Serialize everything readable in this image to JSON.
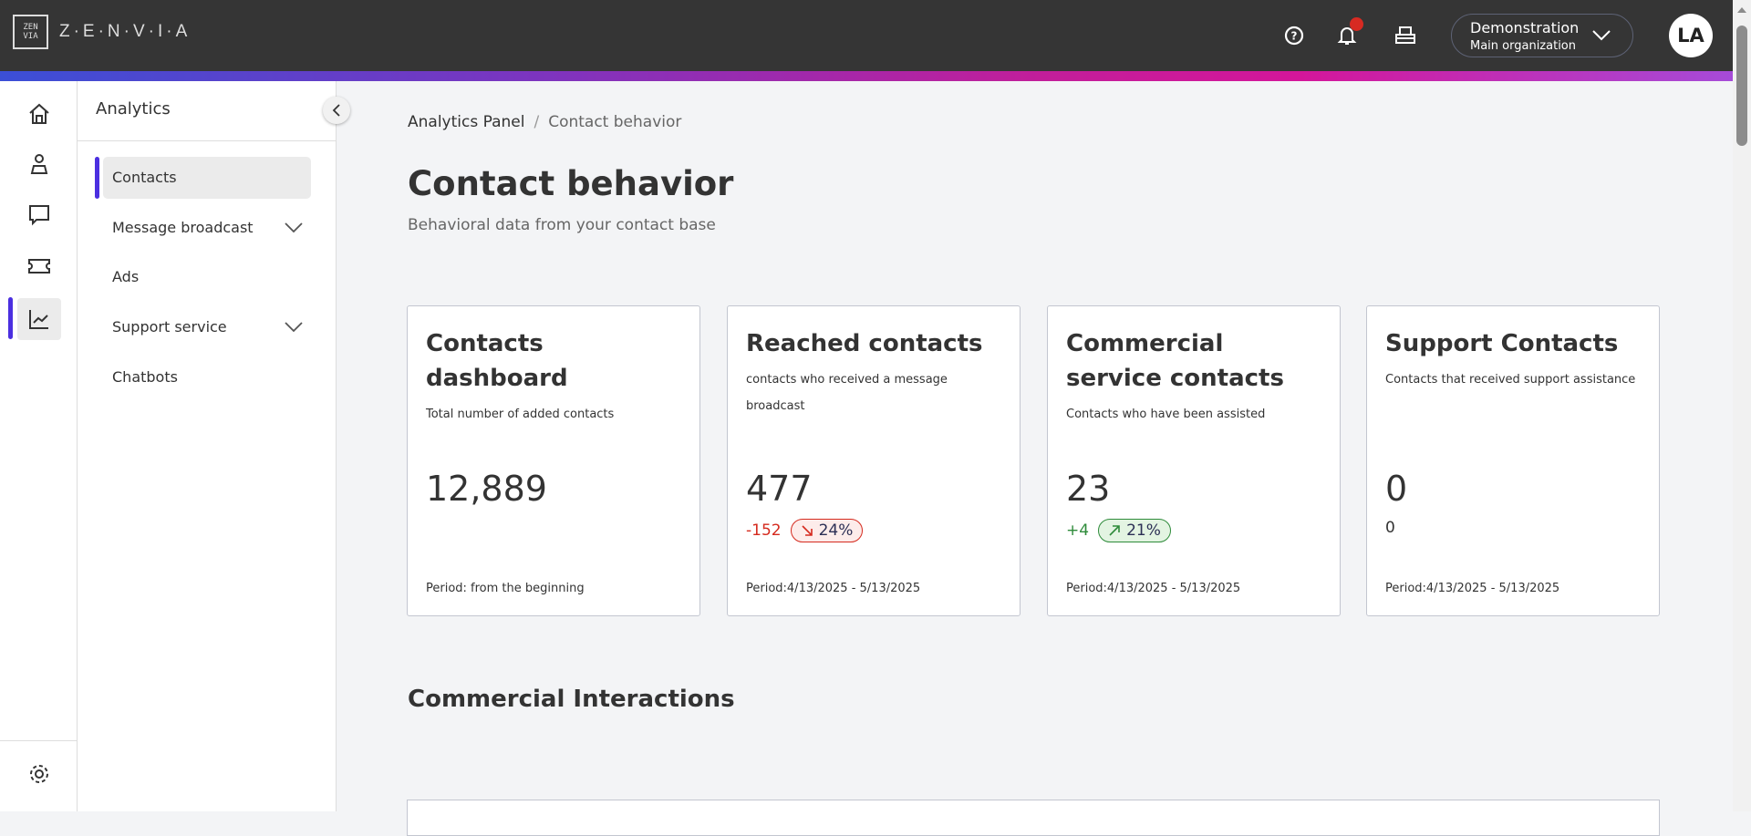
{
  "header": {
    "logo_mark": "ZEN VIA",
    "logo_text": "Z·E·N·V·I·A",
    "icons": [
      "help-icon",
      "bell-icon",
      "inbox-icon"
    ],
    "org_name": "Demonstration",
    "org_sub": "Main organization",
    "avatar": "LA",
    "notification_color": "#d72a22"
  },
  "sidebar": {
    "title": "Analytics",
    "items": [
      {
        "label": "Contacts",
        "active": true
      },
      {
        "label": "Message broadcast",
        "expandable": true
      },
      {
        "label": "Ads"
      },
      {
        "label": "Support service",
        "expandable": true
      },
      {
        "label": "Chatbots"
      }
    ]
  },
  "breadcrumb": {
    "root": "Analytics Panel",
    "sep": "/",
    "current": "Contact behavior"
  },
  "page": {
    "title": "Contact behavior",
    "subtitle": "Behavioral data from your contact base"
  },
  "cards": [
    {
      "title": "Contacts dashboard",
      "desc": "Total number of added contacts",
      "value": "12,889",
      "period": "Period: from the beginning"
    },
    {
      "title": "Reached contacts",
      "desc": "contacts who received a message broadcast",
      "value": "477",
      "delta": "-152",
      "pct": "24%",
      "trend": "down",
      "period": "Period:4/13/2025 - 5/13/2025"
    },
    {
      "title": "Commercial service contacts",
      "desc": "Contacts who have been assisted",
      "value": "23",
      "delta": "+4",
      "pct": "21%",
      "trend": "up",
      "period": "Period:4/13/2025 - 5/13/2025"
    },
    {
      "title": "Support Contacts",
      "desc": "Contacts that received support assistance",
      "value": "0",
      "delta": "0",
      "period": "Period:4/13/2025 - 5/13/2025"
    }
  ],
  "section_title": "Commercial Interactions",
  "colors": {
    "accent": "#4b2fe0",
    "down": "#d52a1e",
    "up": "#2e8b3a"
  }
}
